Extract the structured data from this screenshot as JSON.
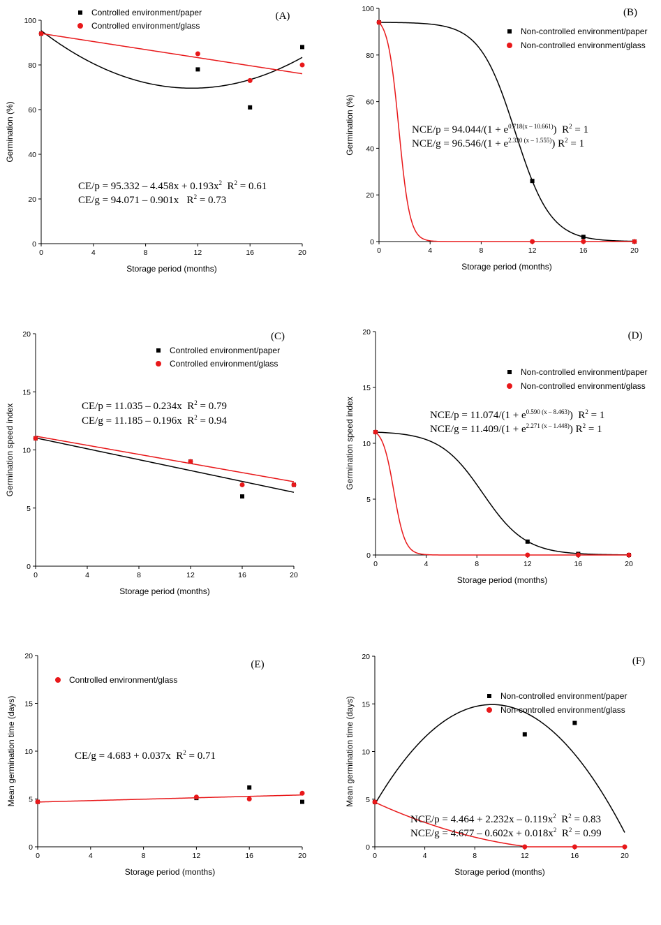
{
  "chart_data": [
    {
      "id": "A",
      "type": "scatter",
      "panel_label": "(A)",
      "xlabel": "Storage period (months)",
      "ylabel": "Germination (%)",
      "xlim": [
        0,
        20
      ],
      "ylim": [
        0,
        100
      ],
      "xticks": [
        0,
        4,
        8,
        12,
        16,
        20
      ],
      "yticks": [
        0,
        20,
        40,
        60,
        80,
        100
      ],
      "legend_position": "top-left",
      "series": [
        {
          "name": "Controlled environment/paper",
          "color": "#000000",
          "marker": "square",
          "points": [
            [
              0,
              94
            ],
            [
              12,
              78
            ],
            [
              16,
              61
            ],
            [
              20,
              88
            ]
          ],
          "fit": {
            "kind": "poly",
            "coef": [
              95.332,
              -4.458,
              0.193
            ]
          }
        },
        {
          "name": "Controlled environment/glass",
          "color": "#e8181a",
          "marker": "circle",
          "points": [
            [
              0,
              94
            ],
            [
              12,
              85
            ],
            [
              16,
              73
            ],
            [
              20,
              80
            ]
          ],
          "fit": {
            "kind": "poly",
            "coef": [
              94.071,
              -0.901
            ]
          }
        }
      ],
      "equations": [
        {
          "text": "CE/p = 95.332 – 4.458x + 0.193x",
          "sup": "2",
          "after": "  R",
          "sup2": "2",
          "tail": " = 0.61"
        },
        {
          "text": "CE/g = 94.071 – 0.901x   R",
          "sup": "2",
          "after": " = 0.73",
          "sup2": "",
          "tail": ""
        }
      ]
    },
    {
      "id": "B",
      "type": "scatter",
      "panel_label": "(B)",
      "xlabel": "Storage period (months)",
      "ylabel": "Germination (%)",
      "xlim": [
        0,
        20
      ],
      "ylim": [
        0,
        100
      ],
      "xticks": [
        0,
        4,
        8,
        12,
        16,
        20
      ],
      "yticks": [
        0,
        20,
        40,
        60,
        80,
        100
      ],
      "legend_position": "top-right",
      "series": [
        {
          "name": "Non-controlled environment/paper",
          "color": "#000000",
          "marker": "square",
          "points": [
            [
              0,
              94
            ],
            [
              12,
              26
            ],
            [
              16,
              2
            ],
            [
              20,
              0
            ]
          ],
          "fit": {
            "kind": "logistic",
            "a": 94.044,
            "b": 0.718,
            "c": 10.661
          }
        },
        {
          "name": "Non-controlled environment/glass",
          "color": "#e8181a",
          "marker": "circle",
          "points": [
            [
              0,
              94
            ],
            [
              12,
              0
            ],
            [
              16,
              0
            ],
            [
              20,
              0
            ]
          ],
          "fit": {
            "kind": "logistic",
            "a": 96.546,
            "b": 2.32,
            "c": 1.555
          }
        }
      ],
      "equations": [
        {
          "text": "NCE/p = 94.044/(1 + e",
          "sup": "0.718(x – 10.661)",
          "after": ")  R",
          "sup2": "2",
          "tail": " = 1"
        },
        {
          "text": "NCE/g = 96.546/(1 + e",
          "sup": "2.320 (x – 1.555)",
          "after": ") R",
          "sup2": "2",
          "tail": " = 1"
        }
      ]
    },
    {
      "id": "C",
      "type": "scatter",
      "panel_label": "(C)",
      "xlabel": "Storage period (months)",
      "ylabel": "Germination speed index",
      "xlim": [
        0,
        20
      ],
      "ylim": [
        0,
        20
      ],
      "xticks": [
        0,
        4,
        8,
        12,
        16,
        20
      ],
      "yticks": [
        0,
        5,
        10,
        15,
        20
      ],
      "legend_position": "top-right",
      "series": [
        {
          "name": "Controlled environment/paper",
          "color": "#000000",
          "marker": "square",
          "points": [
            [
              0,
              11
            ],
            [
              12,
              9
            ],
            [
              16,
              6
            ],
            [
              20,
              7
            ]
          ],
          "fit": {
            "kind": "poly",
            "coef": [
              11.035,
              -0.234
            ]
          }
        },
        {
          "name": "Controlled environment/glass",
          "color": "#e8181a",
          "marker": "circle",
          "points": [
            [
              0,
              11
            ],
            [
              12,
              9
            ],
            [
              16,
              7
            ],
            [
              20,
              7
            ]
          ],
          "fit": {
            "kind": "poly",
            "coef": [
              11.185,
              -0.196
            ]
          }
        }
      ],
      "equations": [
        {
          "text": "CE/p = 11.035 – 0.234x  R",
          "sup": "2",
          "after": " = 0.79",
          "sup2": "",
          "tail": ""
        },
        {
          "text": "CE/g = 11.185 – 0.196x  R",
          "sup": "2",
          "after": " = 0.94",
          "sup2": "",
          "tail": ""
        }
      ]
    },
    {
      "id": "D",
      "type": "scatter",
      "panel_label": "(D)",
      "xlabel": "Storage period (months)",
      "ylabel": "Germination speed index",
      "xlim": [
        0,
        20
      ],
      "ylim": [
        0,
        20
      ],
      "xticks": [
        0,
        4,
        8,
        12,
        16,
        20
      ],
      "yticks": [
        0,
        5,
        10,
        15,
        20
      ],
      "legend_position": "top-right",
      "series": [
        {
          "name": "Non-controlled environment/paper",
          "color": "#000000",
          "marker": "square",
          "points": [
            [
              0,
              11
            ],
            [
              12,
              1.2
            ],
            [
              16,
              0.1
            ],
            [
              20,
              0
            ]
          ],
          "fit": {
            "kind": "logistic",
            "a": 11.074,
            "b": 0.59,
            "c": 8.463
          }
        },
        {
          "name": "Non-controlled environment/glass",
          "color": "#e8181a",
          "marker": "circle",
          "points": [
            [
              0,
              11
            ],
            [
              12,
              0
            ],
            [
              16,
              0
            ],
            [
              20,
              0
            ]
          ],
          "fit": {
            "kind": "logistic",
            "a": 11.409,
            "b": 2.271,
            "c": 1.448
          }
        }
      ],
      "equations": [
        {
          "text": "NCE/p = 11.074/(1 + e",
          "sup": "0.590 (x – 8.463)",
          "after": ")  R",
          "sup2": "2",
          "tail": " = 1"
        },
        {
          "text": "NCE/g = 11.409/(1 + e",
          "sup": "2.271 (x – 1.448)",
          "after": ") R",
          "sup2": "2",
          "tail": " = 1"
        }
      ]
    },
    {
      "id": "E",
      "type": "scatter",
      "panel_label": "(E)",
      "xlabel": "Storage period (months)",
      "ylabel": "Mean germination time (days)",
      "xlim": [
        0,
        20
      ],
      "ylim": [
        0,
        20
      ],
      "xticks": [
        0,
        4,
        8,
        12,
        16,
        20
      ],
      "yticks": [
        0,
        5,
        10,
        15,
        20
      ],
      "legend_position": "top-left",
      "series": [
        {
          "name": "",
          "color": "#000000",
          "marker": "square",
          "in_legend": false,
          "points": [
            [
              0,
              4.7
            ],
            [
              12,
              5.1
            ],
            [
              16,
              6.2
            ],
            [
              20,
              4.7
            ]
          ]
        },
        {
          "name": "Controlled environment/glass",
          "color": "#e8181a",
          "marker": "circle",
          "points": [
            [
              0,
              4.7
            ],
            [
              12,
              5.2
            ],
            [
              16,
              5.0
            ],
            [
              20,
              5.6
            ]
          ],
          "fit": {
            "kind": "poly",
            "coef": [
              4.683,
              0.037
            ]
          }
        }
      ],
      "equations": [
        {
          "text": "CE/g = 4.683 + 0.037x  R",
          "sup": "2",
          "after": " = 0.71",
          "sup2": "",
          "tail": ""
        }
      ]
    },
    {
      "id": "F",
      "type": "scatter",
      "panel_label": "(F)",
      "xlabel": "Storage period (months)",
      "ylabel": "Mean germination time (days)",
      "xlim": [
        0,
        20
      ],
      "ylim": [
        0,
        20
      ],
      "xticks": [
        0,
        4,
        8,
        12,
        16,
        20
      ],
      "yticks": [
        0,
        5,
        10,
        15,
        20
      ],
      "legend_position": "top-right",
      "series": [
        {
          "name": "Non-controlled environment/paper",
          "color": "#000000",
          "marker": "square",
          "points": [
            [
              0,
              4.7
            ],
            [
              12,
              11.8
            ],
            [
              16,
              13
            ]
          ],
          "fit": {
            "kind": "poly",
            "coef": [
              4.464,
              2.232,
              -0.119
            ]
          }
        },
        {
          "name": "Non-controlled environment/glass",
          "color": "#e8181a",
          "marker": "circle",
          "points": [
            [
              0,
              4.7
            ],
            [
              12,
              0
            ],
            [
              16,
              0
            ],
            [
              20,
              0
            ]
          ],
          "fit": {
            "kind": "poly_floor",
            "coef": [
              4.677,
              -0.602,
              0.018
            ]
          }
        }
      ],
      "equations": [
        {
          "text": "NCE/p = 4.464 + 2.232x – 0.119x",
          "sup": "2",
          "after": "  R",
          "sup2": "2",
          "tail": " = 0.83"
        },
        {
          "text": "NCE/g = 4.677 – 0.602x + 0.018x",
          "sup": "2",
          "after": "  R",
          "sup2": "2",
          "tail": " = 0.99"
        }
      ]
    }
  ]
}
